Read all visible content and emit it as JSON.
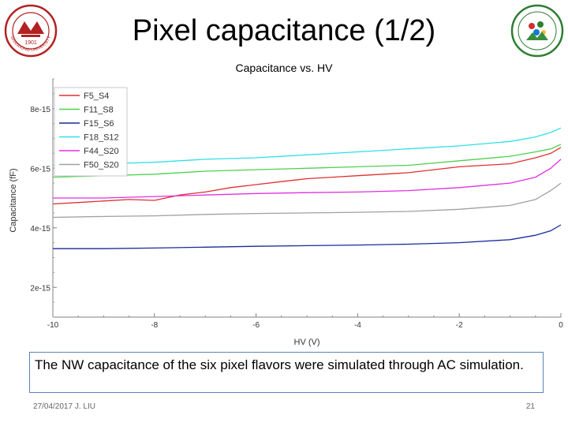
{
  "slide": {
    "title": "Pixel capacitance (1/2)",
    "caption": "The NW capacitance of the six pixel flavors were simulated through AC simulation.",
    "footer_left": "27/04/2017 J. LIU",
    "page_number": "21"
  },
  "logo_left": {
    "year_text": "1901",
    "ring_text": "SHANDONG UNIVERSITY"
  },
  "chart_data": {
    "type": "line",
    "title": "Capacitance vs. HV",
    "xlabel": "HV (V)",
    "ylabel": "Capacitance (fF)",
    "xlim": [
      -10,
      0
    ],
    "ylim": [
      1e-15,
      9e-15
    ],
    "x_ticks": [
      -10,
      -8,
      -6,
      -4,
      -2,
      0
    ],
    "x_tick_labels": [
      "-10",
      "-8",
      "-6",
      "-4",
      "-2",
      "0"
    ],
    "y_ticks": [
      2e-15,
      4e-15,
      6e-15,
      8e-15
    ],
    "y_tick_labels": [
      "2e-15",
      "4e-15",
      "6e-15",
      "8e-15"
    ],
    "grid": false,
    "legend_position": "top-left",
    "series": [
      {
        "name": "F5_S4",
        "color": "#e03030",
        "x": [
          -10,
          -9.5,
          -9,
          -8.5,
          -8,
          -7.5,
          -7,
          -6.5,
          -6,
          -5.5,
          -5,
          -4.5,
          -4,
          -3.5,
          -3,
          -2.5,
          -2,
          -1.5,
          -1,
          -0.5,
          -0.2,
          0
        ],
        "y": [
          4.8e-15,
          4.85e-15,
          4.9e-15,
          4.95e-15,
          4.92e-15,
          5.1e-15,
          5.2e-15,
          5.35e-15,
          5.45e-15,
          5.55e-15,
          5.65e-15,
          5.7e-15,
          5.75e-15,
          5.8e-15,
          5.85e-15,
          5.95e-15,
          6.05e-15,
          6.1e-15,
          6.15e-15,
          6.35e-15,
          6.5e-15,
          6.7e-15
        ]
      },
      {
        "name": "F11_S8",
        "color": "#50d050",
        "x": [
          -10,
          -9,
          -8,
          -7,
          -6,
          -5,
          -4,
          -3,
          -2,
          -1,
          -0.5,
          -0.2,
          0
        ],
        "y": [
          5.7e-15,
          5.75e-15,
          5.8e-15,
          5.9e-15,
          5.95e-15,
          6e-15,
          6.05e-15,
          6.1e-15,
          6.25e-15,
          6.4e-15,
          6.55e-15,
          6.65e-15,
          6.8e-15
        ]
      },
      {
        "name": "F15_S6",
        "color": "#1a2a9a",
        "x": [
          -10,
          -9,
          -8,
          -7,
          -6,
          -5,
          -4,
          -3,
          -2,
          -1,
          -0.5,
          -0.2,
          0
        ],
        "y": [
          3.3e-15,
          3.3e-15,
          3.32e-15,
          3.35e-15,
          3.38e-15,
          3.4e-15,
          3.42e-15,
          3.45e-15,
          3.5e-15,
          3.6e-15,
          3.75e-15,
          3.9e-15,
          4.1e-15
        ]
      },
      {
        "name": "F18_S12",
        "color": "#30e0e8",
        "x": [
          -10,
          -9,
          -8,
          -7,
          -6,
          -5,
          -4,
          -3,
          -2,
          -1,
          -0.5,
          -0.2,
          0
        ],
        "y": [
          6.1e-15,
          6.15e-15,
          6.2e-15,
          6.3e-15,
          6.35e-15,
          6.45e-15,
          6.55e-15,
          6.65e-15,
          6.75e-15,
          6.9e-15,
          7.05e-15,
          7.2e-15,
          7.35e-15
        ]
      },
      {
        "name": "F44_S20",
        "color": "#e030e0",
        "x": [
          -10,
          -9,
          -8,
          -7,
          -6,
          -5,
          -4,
          -3,
          -2,
          -1,
          -0.5,
          -0.2,
          0
        ],
        "y": [
          5e-15,
          5e-15,
          5.05e-15,
          5.1e-15,
          5.15e-15,
          5.18e-15,
          5.2e-15,
          5.25e-15,
          5.35e-15,
          5.5e-15,
          5.7e-15,
          6e-15,
          6.3e-15
        ]
      },
      {
        "name": "F50_S20",
        "color": "#a0a0a0",
        "x": [
          -10,
          -9,
          -8,
          -7,
          -6,
          -5,
          -4,
          -3,
          -2,
          -1,
          -0.5,
          -0.2,
          0
        ],
        "y": [
          4.35e-15,
          4.38e-15,
          4.4e-15,
          4.45e-15,
          4.48e-15,
          4.5e-15,
          4.52e-15,
          4.55e-15,
          4.62e-15,
          4.75e-15,
          4.95e-15,
          5.25e-15,
          5.5e-15
        ]
      }
    ]
  }
}
